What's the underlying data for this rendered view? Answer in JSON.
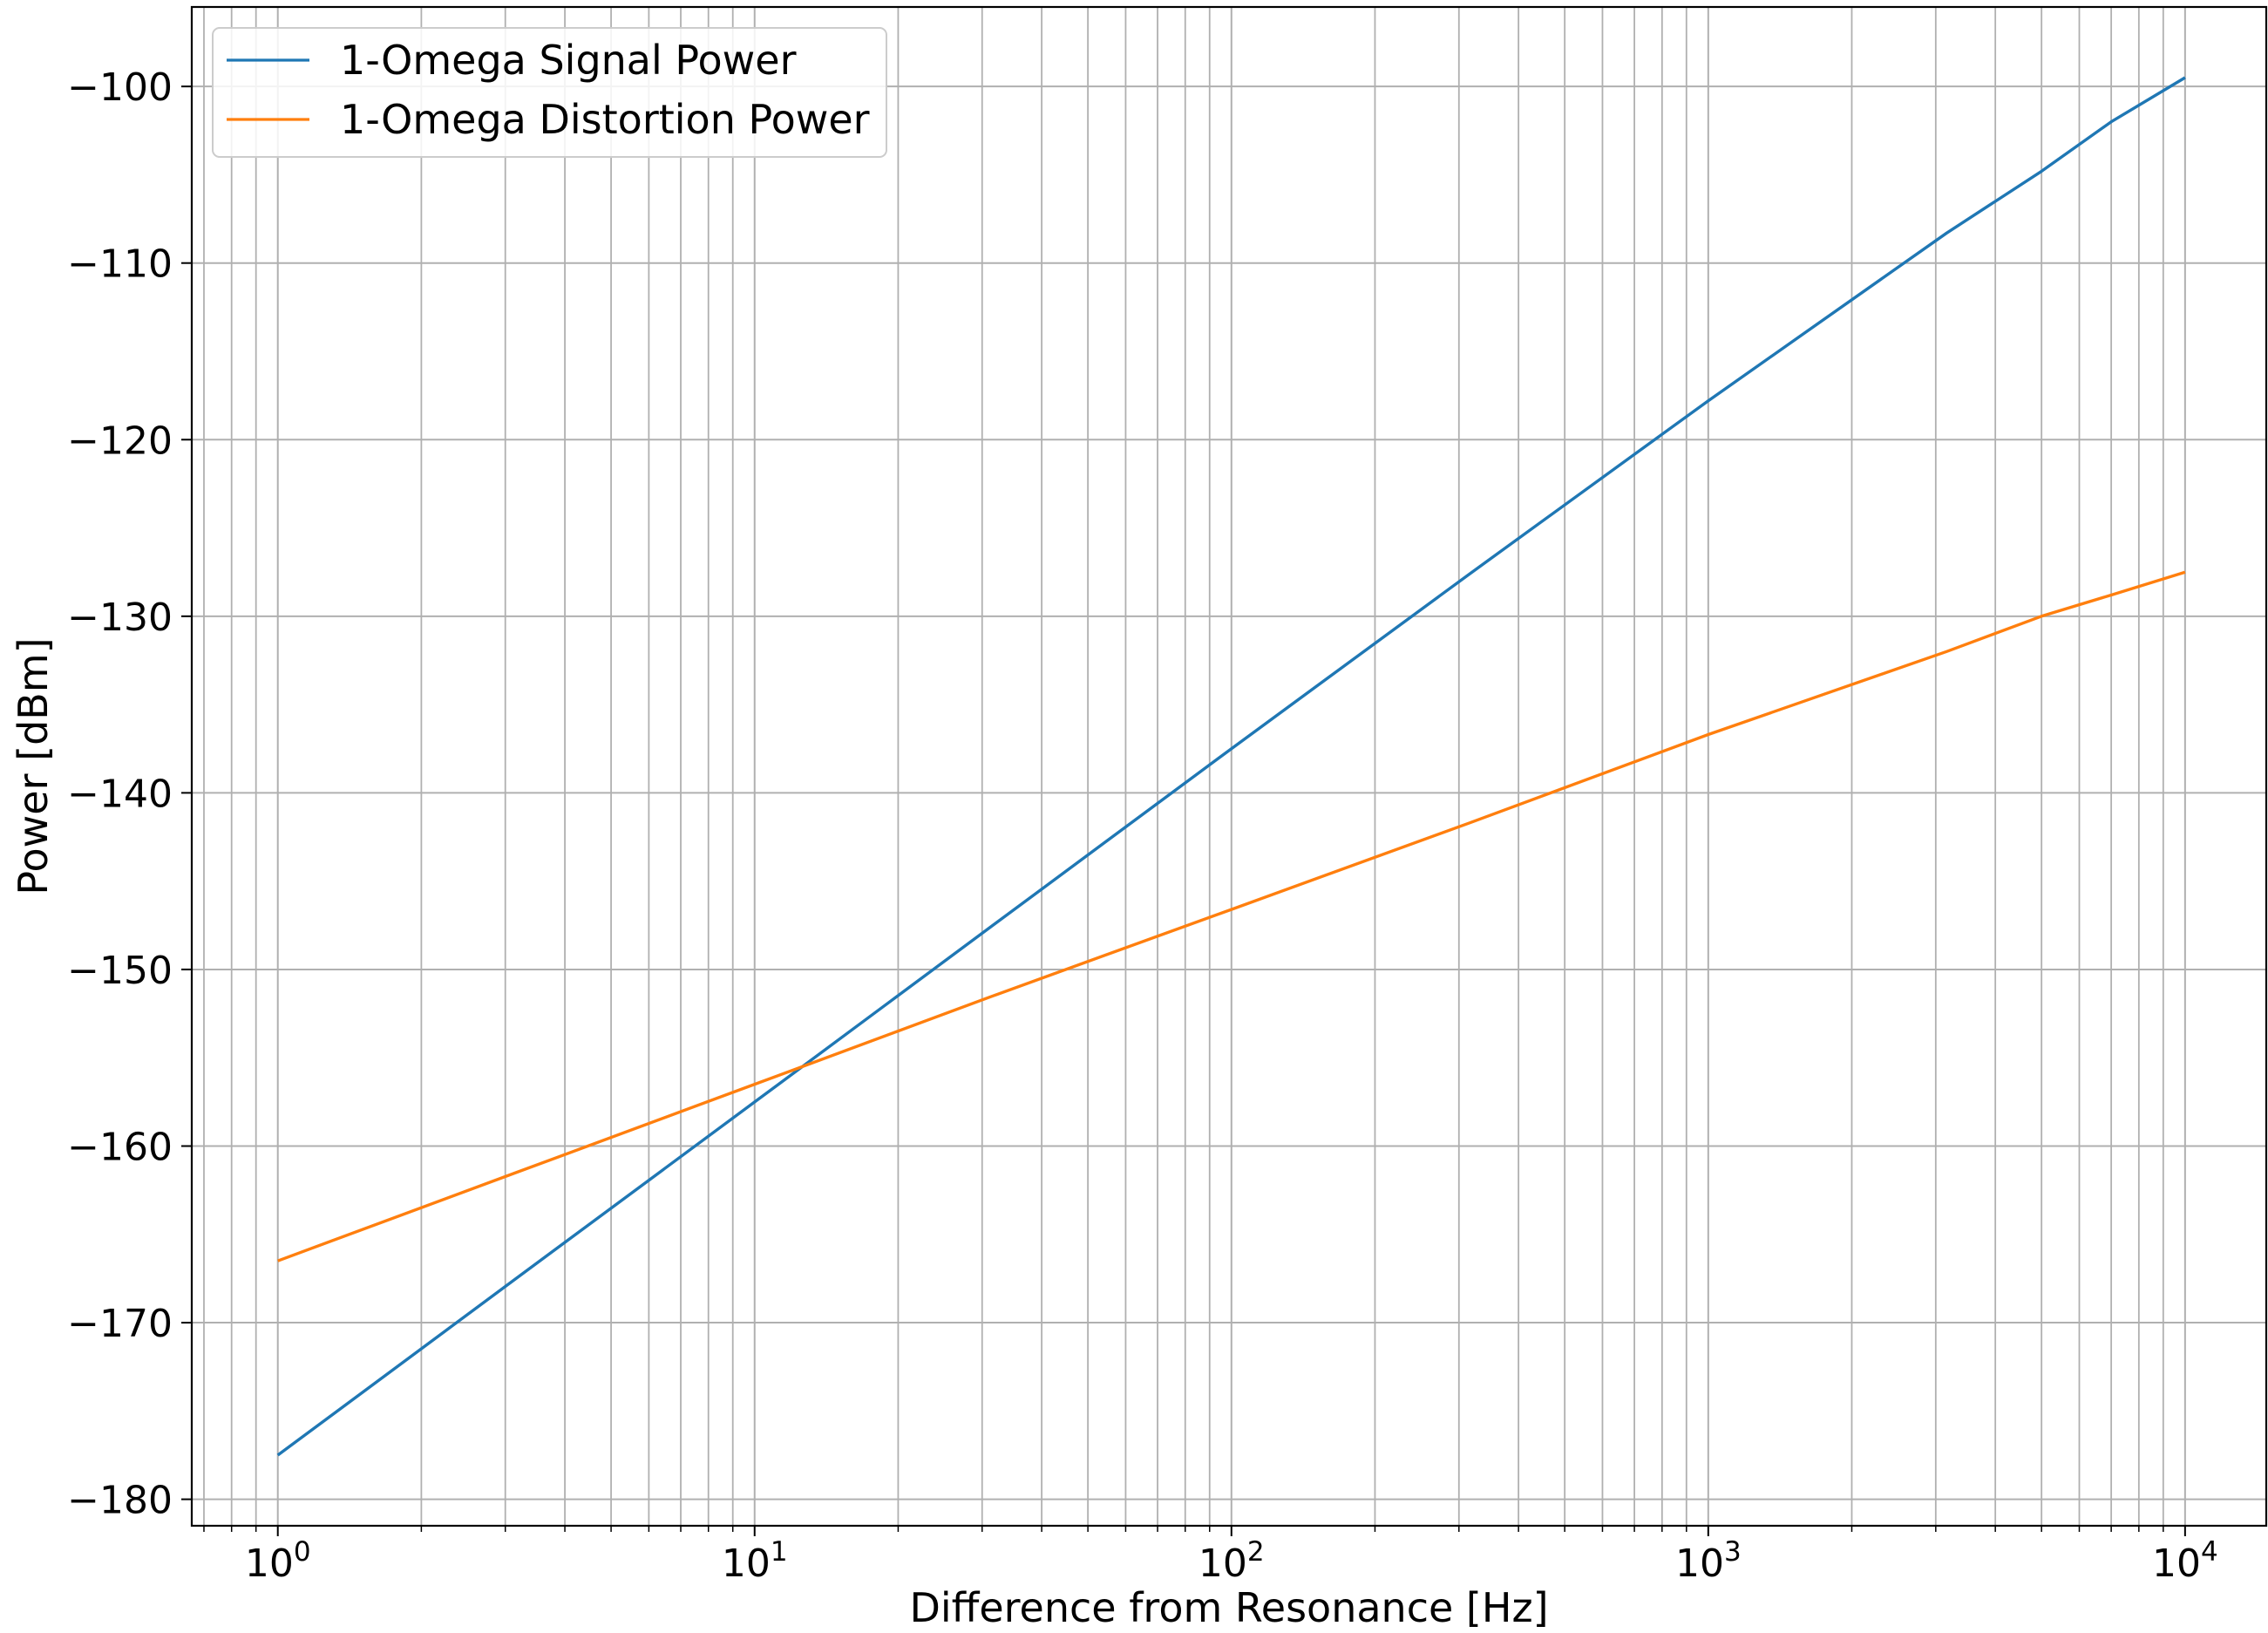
{
  "chart_data": {
    "type": "line",
    "title": "",
    "xlabel": "Difference from Resonance [Hz]",
    "ylabel": "Power [dBm]",
    "xscale": "log",
    "xlim": [
      0.66,
      14800
    ],
    "ylim": [
      -181.5,
      -95.5
    ],
    "grid": "major and minor",
    "legend_location": "upper-left",
    "x_ticks": [
      {
        "value": 1,
        "base": "10",
        "exp": "0"
      },
      {
        "value": 10,
        "base": "10",
        "exp": "1"
      },
      {
        "value": 100,
        "base": "10",
        "exp": "2"
      },
      {
        "value": 1000,
        "base": "10",
        "exp": "3"
      },
      {
        "value": 10000,
        "base": "10",
        "exp": "4"
      }
    ],
    "y_ticks": [
      {
        "value": -100,
        "label": "−100"
      },
      {
        "value": -110,
        "label": "−110"
      },
      {
        "value": -120,
        "label": "−120"
      },
      {
        "value": -130,
        "label": "−130"
      },
      {
        "value": -140,
        "label": "−140"
      },
      {
        "value": -150,
        "label": "−150"
      },
      {
        "value": -160,
        "label": "−160"
      },
      {
        "value": -170,
        "label": "−170"
      },
      {
        "value": -180,
        "label": "−180"
      }
    ],
    "series": [
      {
        "name": "1-Omega Signal Power",
        "color": "#1f77b4",
        "points": [
          [
            1,
            -177.5
          ],
          [
            3.16,
            -167.5
          ],
          [
            10,
            -157.5
          ],
          [
            31.6,
            -147.5
          ],
          [
            100,
            -137.5
          ],
          [
            316,
            -127.6
          ],
          [
            1000,
            -117.8
          ],
          [
            3162,
            -108.3
          ],
          [
            5000,
            -104.8
          ],
          [
            7000,
            -102.0
          ],
          [
            10000,
            -99.5
          ]
        ]
      },
      {
        "name": "1-Omega Distortion Power",
        "color": "#ff7f0e",
        "points": [
          [
            1,
            -166.5
          ],
          [
            3.16,
            -161.5
          ],
          [
            10,
            -156.5
          ],
          [
            31.6,
            -151.5
          ],
          [
            100,
            -146.6
          ],
          [
            316,
            -141.7
          ],
          [
            1000,
            -136.7
          ],
          [
            3162,
            -132.0
          ],
          [
            5000,
            -130.0
          ],
          [
            7000,
            -128.8
          ],
          [
            10000,
            -127.5
          ]
        ]
      }
    ]
  }
}
